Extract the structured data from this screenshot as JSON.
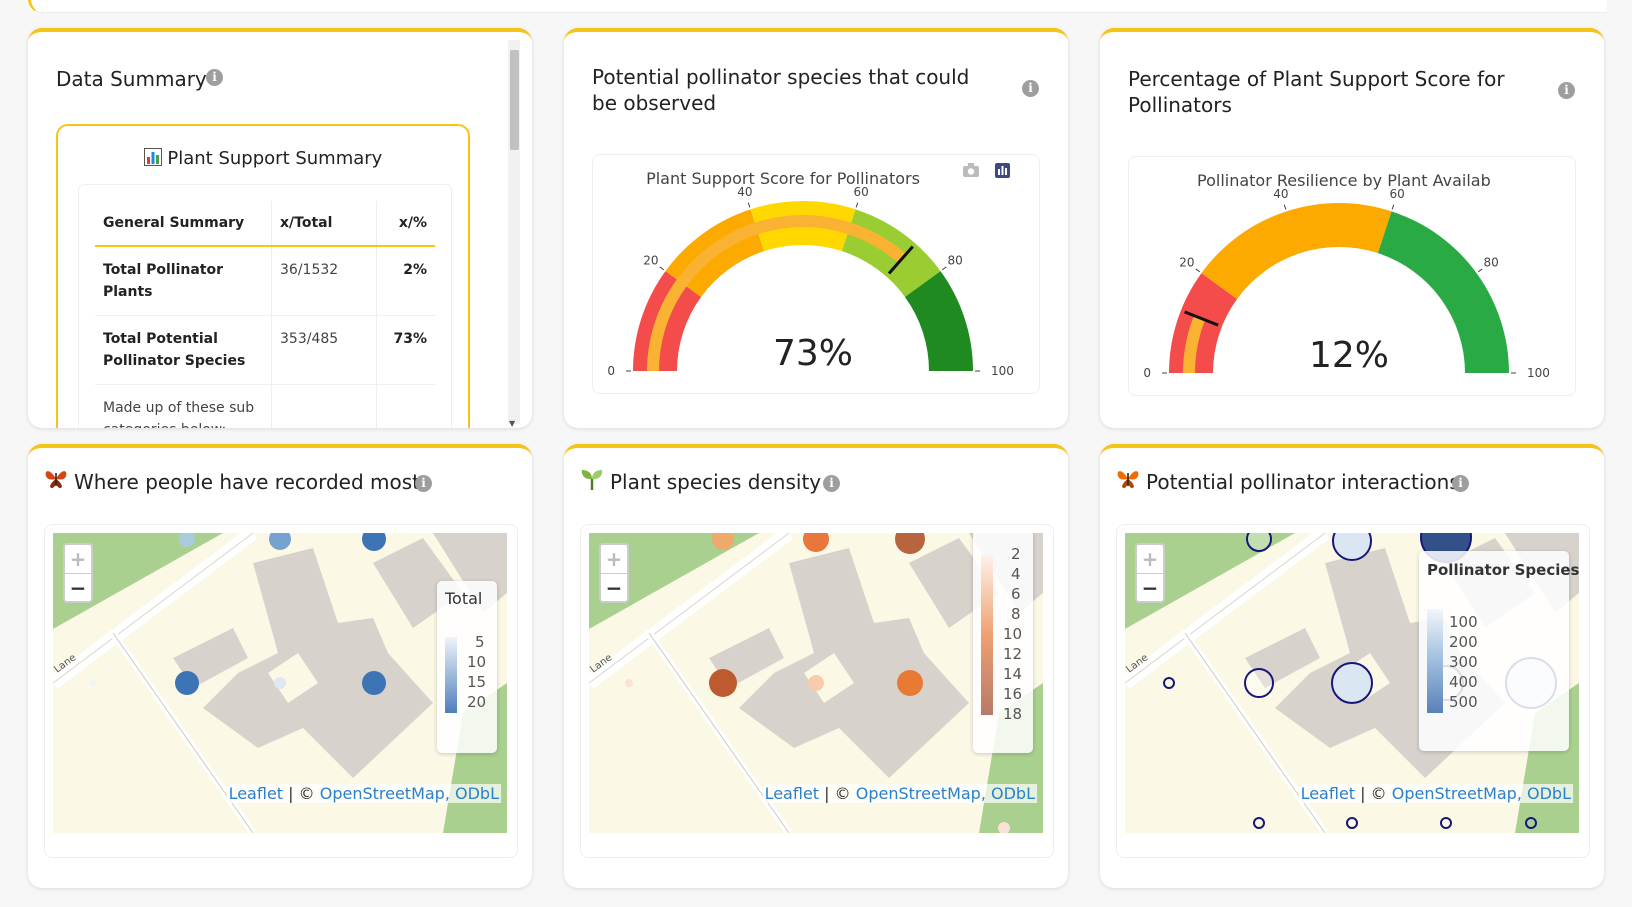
{
  "colors": {
    "accent": "#f5c518",
    "gauge_red": "#f44b4b",
    "gauge_orange": "#fdaa00",
    "gauge_yellow": "#ffd800",
    "gauge_lightgreen": "#9acd32",
    "gauge_green": "#1f8a1f",
    "link": "#2a81cb"
  },
  "data_summary": {
    "title": "Data Summary",
    "heading_icon": "bar-chart-icon",
    "heading": "Plant Support Summary",
    "columns": [
      "General Summary",
      "x/Total",
      "x/%"
    ],
    "rows": [
      {
        "label": "Total Pollinator Plants",
        "total": "36/1532",
        "pct": "2%"
      },
      {
        "label": "Total Potential Pollinator Species",
        "total": "353/485",
        "pct": "73%"
      },
      {
        "label": "Made up of these sub categories below:",
        "total": "",
        "pct": ""
      }
    ]
  },
  "gauge1": {
    "title": "Potential pollinator species that could be observed",
    "plot_title": "Plant Support Score for Pollinators",
    "value_text": "73%",
    "value": 73,
    "ticks": [
      "0",
      "20",
      "40",
      "60",
      "80",
      "100"
    ],
    "tick_values": [
      0,
      20,
      40,
      60,
      80,
      100
    ],
    "bands": [
      {
        "from": 0,
        "to": 20,
        "color": "#f44b4b"
      },
      {
        "from": 20,
        "to": 40,
        "color": "#fdaa00"
      },
      {
        "from": 40,
        "to": 60,
        "color": "#ffd800"
      },
      {
        "from": 60,
        "to": 80,
        "color": "#9acd32"
      },
      {
        "from": 80,
        "to": 100,
        "color": "#1f8a1f"
      }
    ],
    "bar_color": "#f9b232",
    "threshold": 73
  },
  "gauge2": {
    "title": "Percentage of Plant Support Score for Pollinators",
    "plot_title": "Pollinator Resilience by Plant Availability",
    "value_text": "12%",
    "value": 12,
    "ticks": [
      "0",
      "20",
      "40",
      "60",
      "80",
      "100"
    ],
    "tick_values": [
      0,
      20,
      40,
      60,
      80,
      100
    ],
    "bands": [
      {
        "from": 0,
        "to": 20,
        "color": "#f44b4b"
      },
      {
        "from": 20,
        "to": 60,
        "color": "#fdaa00"
      },
      {
        "from": 60,
        "to": 100,
        "color": "#2aaa45"
      }
    ],
    "bar_color": "#f9b232",
    "threshold": 12
  },
  "map1": {
    "title": "Where people have recorded most",
    "legend_title": "Total",
    "legend_ticks": [
      "5",
      "10",
      "15",
      "20"
    ],
    "road_label": "Lane",
    "attribution_leaflet": "Leaflet",
    "attribution_sep": " | © ",
    "attribution_osm": "OpenStreetMap, ODbL"
  },
  "map2": {
    "title": "Plant species density",
    "legend_ticks": [
      "2",
      "4",
      "6",
      "8",
      "10",
      "12",
      "14",
      "16",
      "18"
    ],
    "road_label": "Lane",
    "attribution_leaflet": "Leaflet",
    "attribution_sep": " | © ",
    "attribution_osm": "OpenStreetMap, ODbL"
  },
  "map3": {
    "title": "Potential pollinator interactions",
    "legend_title": "Pollinator Species",
    "legend_ticks": [
      "100",
      "200",
      "300",
      "400",
      "500"
    ],
    "road_label": "Lane",
    "attribution_leaflet": "Leaflet",
    "attribution_sep": " | © ",
    "attribution_osm": "OpenStreetMap, ODbL"
  },
  "zoom_in": "+",
  "zoom_out": "−"
}
